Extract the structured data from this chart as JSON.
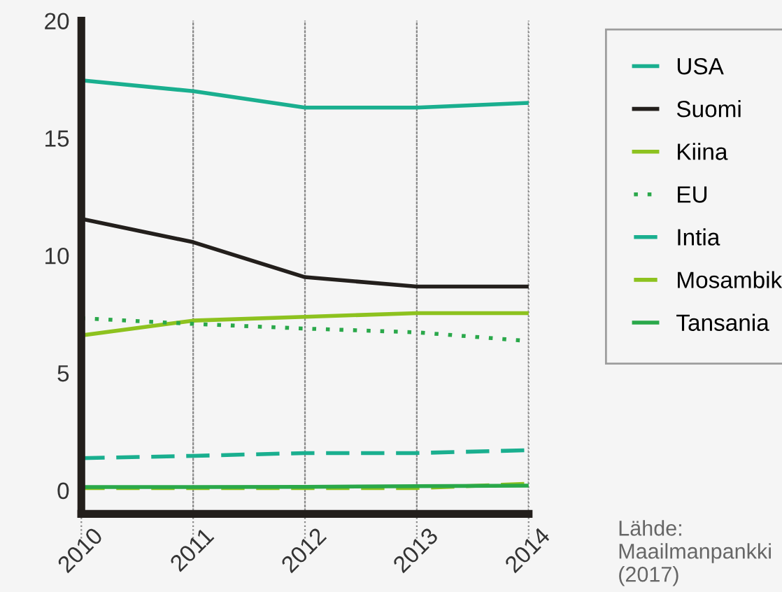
{
  "chart_data": {
    "type": "line",
    "x": [
      2010,
      2011,
      2012,
      2013,
      2014
    ],
    "xlim": [
      2010,
      2014
    ],
    "xticks": [
      2010,
      2011,
      2012,
      2013,
      2014
    ],
    "ylim": [
      -1,
      20
    ],
    "yticks": [
      0,
      5,
      10,
      15,
      20
    ],
    "grid": "x",
    "legend": "right",
    "marker": "none",
    "series": [
      {
        "name": "USA",
        "color": "#1aaf8f",
        "line_style": "solid",
        "values": [
          17.46,
          17.0,
          16.3,
          16.3,
          16.5
        ]
      },
      {
        "name": "Suomi",
        "color": "#231f1c",
        "line_style": "solid",
        "values": [
          11.56,
          10.57,
          9.08,
          8.68,
          8.68
        ]
      },
      {
        "name": "Kiina",
        "color": "#8dc21f",
        "line_style": "solid",
        "values": [
          6.6,
          7.23,
          7.39,
          7.55,
          7.55
        ]
      },
      {
        "name": "EU",
        "color": "#2aa84a",
        "line_style": "dotted",
        "values": [
          7.33,
          7.09,
          6.89,
          6.73,
          6.36
        ]
      },
      {
        "name": "Intia",
        "color": "#1aaf8f",
        "line_style": "dashed",
        "values": [
          1.37,
          1.47,
          1.59,
          1.59,
          1.71
        ]
      },
      {
        "name": "Mosambik",
        "color": "#8dc21f",
        "line_style": "dashed",
        "values": [
          0.1,
          0.1,
          0.1,
          0.1,
          0.28
        ]
      },
      {
        "name": "Tansania",
        "color": "#2aa84a",
        "line_style": "solid",
        "values": [
          0.14,
          0.14,
          0.15,
          0.18,
          0.2
        ]
      }
    ],
    "annotations": [
      "Lähde:\nMaailmanpankki\n(2017)"
    ]
  }
}
